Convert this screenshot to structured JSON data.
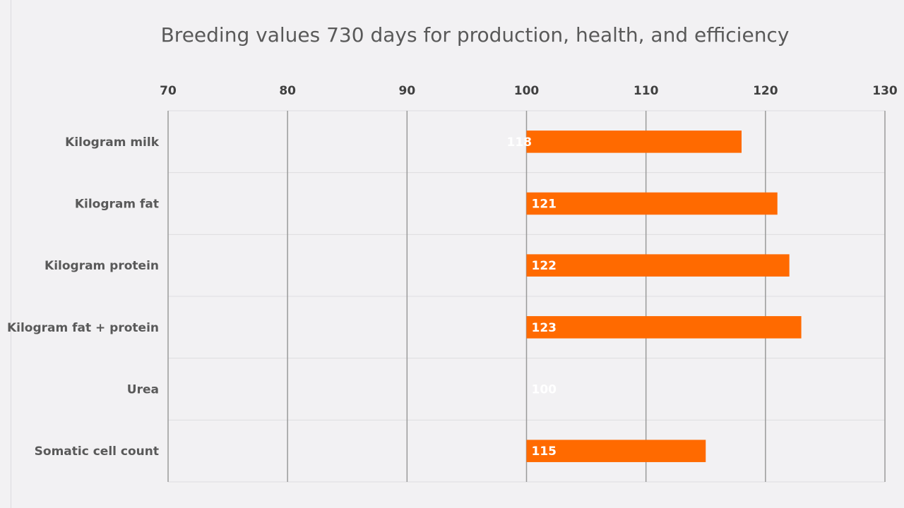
{
  "chart_data": {
    "type": "bar",
    "orientation": "horizontal",
    "title": "Breeding values 730 days for production, health, and efficiency",
    "categories": [
      "Kilogram milk",
      "Kilogram fat",
      "Kilogram protein",
      "Kilogram fat + protein",
      "Urea",
      "Somatic cell count"
    ],
    "values": [
      118,
      121,
      122,
      123,
      100,
      115
    ],
    "baseline": 100,
    "xlim": [
      70,
      130
    ],
    "ticks": [
      70,
      80,
      90,
      100,
      110,
      120,
      130
    ],
    "tick_labels": [
      "70",
      "80",
      "90",
      "100",
      "110",
      "120",
      "130"
    ],
    "axis_position": "top",
    "grid": true,
    "bar_color": "#ff6a00",
    "label_color": "#ffffff",
    "xlabel": "",
    "ylabel": ""
  }
}
